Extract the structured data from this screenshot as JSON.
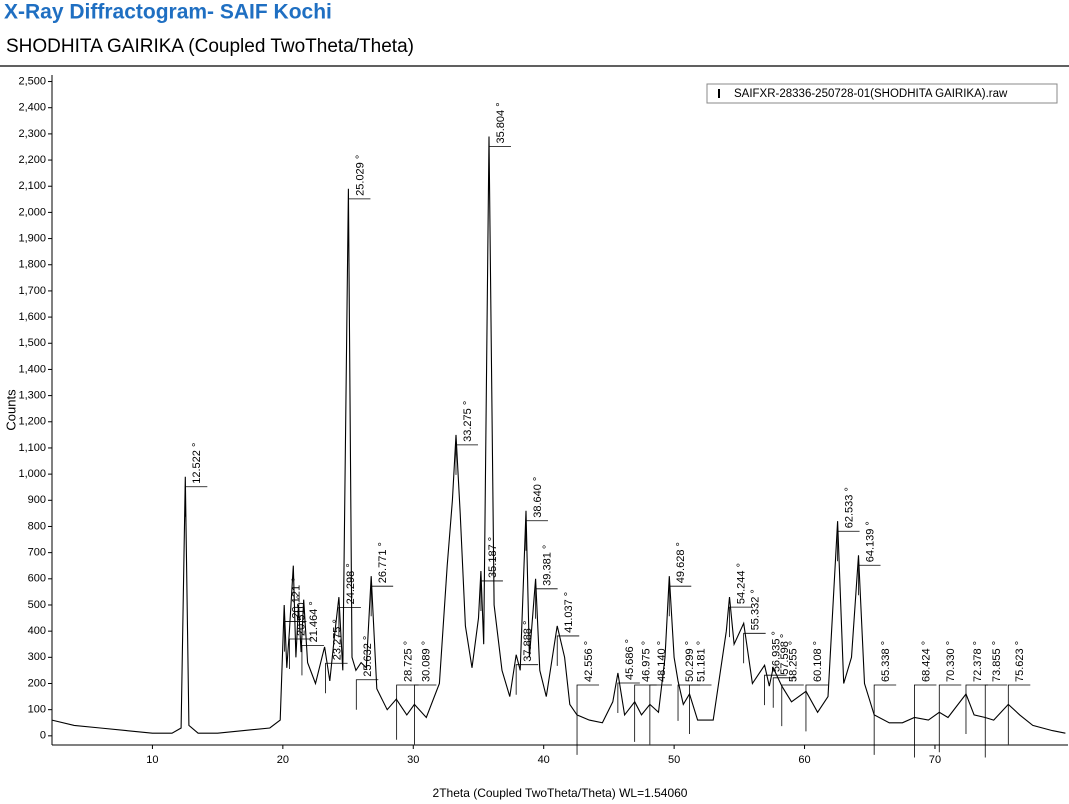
{
  "chart_data": {
    "type": "line",
    "title": "X-Ray Diffractogram- SAIF Kochi",
    "subtitle": "SHODHITA GAIRIKA (Coupled TwoTheta/Theta)",
    "x_label": "2Theta (Coupled TwoTheta/Theta) WL=1.54060",
    "y_label": "Counts",
    "xlim": [
      2.3,
      80.2
    ],
    "ylim": [
      -35,
      2525
    ],
    "xticks": [
      10,
      20,
      30,
      40,
      50,
      60,
      70
    ],
    "yticks": [
      0,
      100,
      200,
      300,
      400,
      500,
      600,
      700,
      800,
      900,
      {
        "value": 1000,
        "label": "1,000"
      },
      {
        "value": 1100,
        "label": "1,100"
      },
      {
        "value": 1200,
        "label": "1,200"
      },
      {
        "value": 1300,
        "label": "1,300"
      },
      {
        "value": 1400,
        "label": "1,400"
      },
      {
        "value": 1500,
        "label": "1,500"
      },
      {
        "value": 1600,
        "label": "1,600"
      },
      {
        "value": 1700,
        "label": "1,700"
      },
      {
        "value": 1800,
        "label": "1,800"
      },
      {
        "value": 1900,
        "label": "1,900"
      },
      {
        "value": 2000,
        "label": "2,000"
      },
      {
        "value": 2100,
        "label": "2,100"
      },
      {
        "value": 2200,
        "label": "2,200"
      },
      {
        "value": 2300,
        "label": "2,300"
      },
      {
        "value": 2400,
        "label": "2,400"
      },
      {
        "value": 2500,
        "label": "2,500"
      }
    ],
    "x": [
      2.3,
      4,
      6,
      8,
      10,
      11.5,
      12.2,
      12.522,
      12.8,
      13.5,
      15,
      17,
      19,
      19.8,
      20.1,
      20.3,
      20.5,
      20.8,
      21.0,
      21.2,
      21.4,
      21.6,
      21.9,
      22.5,
      23.0,
      23.2,
      23.6,
      24.0,
      24.3,
      24.6,
      25.029,
      25.3,
      25.6,
      26.0,
      26.4,
      26.771,
      27.2,
      28.0,
      28.7,
      29.5,
      30.089,
      31,
      32.0,
      32.6,
      33.0,
      33.275,
      33.6,
      34.0,
      34.5,
      35.0,
      35.187,
      35.4,
      35.804,
      36.2,
      36.8,
      37.4,
      37.888,
      38.2,
      38.64,
      38.9,
      39.381,
      39.7,
      40.2,
      41.037,
      41.6,
      42.0,
      42.556,
      43.5,
      44.5,
      45.3,
      45.686,
      46.2,
      46.975,
      47.5,
      48.14,
      48.8,
      49.3,
      49.628,
      50.0,
      50.299,
      50.7,
      51.181,
      51.8,
      53,
      54.0,
      54.244,
      54.6,
      55.332,
      56.0,
      56.935,
      57.3,
      57.598,
      58.255,
      59.0,
      60.108,
      61.0,
      61.8,
      62.533,
      63.0,
      63.6,
      64.139,
      64.6,
      65.338,
      66.5,
      67.5,
      68.424,
      69.5,
      70.33,
      71.0,
      72.378,
      73.0,
      73.855,
      74.5,
      75.623,
      76.5,
      77.5,
      79,
      80
    ],
    "series": [
      {
        "name": "SAIFXR-28336-250728-01(SHODHITA GAIRIKA).raw",
        "color": "#000000",
        "values": [
          60,
          40,
          30,
          20,
          10,
          10,
          30,
          990,
          40,
          10,
          10,
          20,
          30,
          60,
          500,
          260,
          400,
          650,
          300,
          500,
          320,
          520,
          280,
          200,
          300,
          340,
          210,
          400,
          530,
          250,
          2090,
          300,
          250,
          280,
          260,
          610,
          180,
          100,
          140,
          80,
          120,
          70,
          200,
          650,
          900,
          1150,
          850,
          420,
          260,
          450,
          630,
          350,
          2290,
          500,
          250,
          150,
          310,
          250,
          860,
          300,
          600,
          250,
          150,
          420,
          300,
          120,
          80,
          60,
          50,
          130,
          240,
          80,
          130,
          80,
          120,
          90,
          300,
          610,
          300,
          210,
          120,
          160,
          60,
          60,
          400,
          530,
          350,
          430,
          200,
          270,
          190,
          260,
          190,
          130,
          170,
          90,
          150,
          820,
          200,
          300,
          690,
          200,
          80,
          50,
          50,
          70,
          60,
          90,
          70,
          160,
          80,
          70,
          60,
          120,
          80,
          40,
          20,
          10
        ]
      }
    ],
    "peaks": [
      {
        "x": 12.522,
        "label": "12.522 °"
      },
      {
        "x": 20.121,
        "label": "20.121 °"
      },
      {
        "x": 20.51,
        "label": "20.510 °"
      },
      {
        "x": 21.464,
        "label": "21.464 °"
      },
      {
        "x": 23.275,
        "label": "23.275 °"
      },
      {
        "x": 24.298,
        "label": "24.298 °"
      },
      {
        "x": 25.029,
        "label": "25.029 °"
      },
      {
        "x": 25.632,
        "label": "25.632 °"
      },
      {
        "x": 26.771,
        "label": "26.771 °"
      },
      {
        "x": 28.725,
        "label": "28.725 °"
      },
      {
        "x": 30.089,
        "label": "30.089 °"
      },
      {
        "x": 33.275,
        "label": "33.275 °"
      },
      {
        "x": 35.187,
        "label": "35.187 °"
      },
      {
        "x": 35.804,
        "label": "35.804 °"
      },
      {
        "x": 37.888,
        "label": "37.888 °"
      },
      {
        "x": 38.64,
        "label": "38.640 °"
      },
      {
        "x": 39.381,
        "label": "39.381 °"
      },
      {
        "x": 41.037,
        "label": "41.037 °"
      },
      {
        "x": 42.556,
        "label": "42.556 °"
      },
      {
        "x": 45.686,
        "label": "45.686 °"
      },
      {
        "x": 46.975,
        "label": "46.975 °"
      },
      {
        "x": 48.14,
        "label": "48.140 °"
      },
      {
        "x": 49.628,
        "label": "49.628 °"
      },
      {
        "x": 50.299,
        "label": "50.299 °"
      },
      {
        "x": 51.181,
        "label": "51.181 °"
      },
      {
        "x": 54.244,
        "label": "54.244 °"
      },
      {
        "x": 55.332,
        "label": "55.332 °"
      },
      {
        "x": 56.935,
        "label": "56.935 °"
      },
      {
        "x": 57.598,
        "label": "57.598 °"
      },
      {
        "x": 58.255,
        "label": "58.255 °"
      },
      {
        "x": 60.108,
        "label": "60.108 °"
      },
      {
        "x": 62.533,
        "label": "62.533 °"
      },
      {
        "x": 64.139,
        "label": "64.139 °"
      },
      {
        "x": 65.338,
        "label": "65.338 °"
      },
      {
        "x": 68.424,
        "label": "68.424 °"
      },
      {
        "x": 70.33,
        "label": "70.330 °"
      },
      {
        "x": 72.378,
        "label": "72.378 °"
      },
      {
        "x": 73.855,
        "label": "73.855 °"
      },
      {
        "x": 75.623,
        "label": "75.623 °"
      }
    ]
  }
}
